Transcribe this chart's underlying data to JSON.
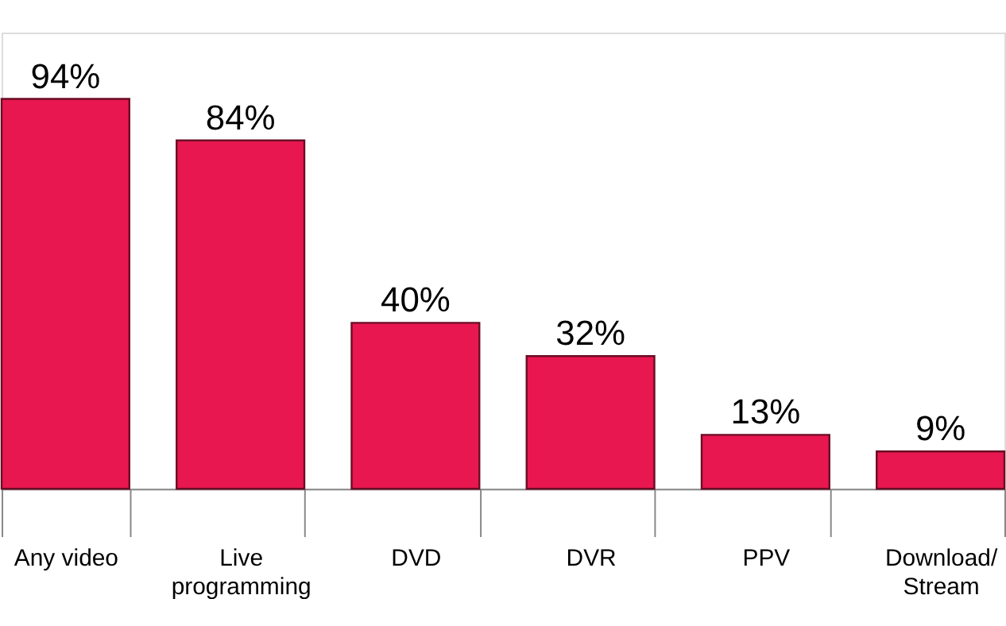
{
  "chart_data": {
    "type": "bar",
    "categories": [
      "Any video",
      "Live\nprogramming",
      "DVD",
      "DVR",
      "PPV",
      "Download/\nStream"
    ],
    "values": [
      94,
      84,
      40,
      32,
      13,
      9
    ],
    "value_labels": [
      "94%",
      "84%",
      "40%",
      "32%",
      "13%",
      "9%"
    ],
    "color": "#e8174f"
  }
}
